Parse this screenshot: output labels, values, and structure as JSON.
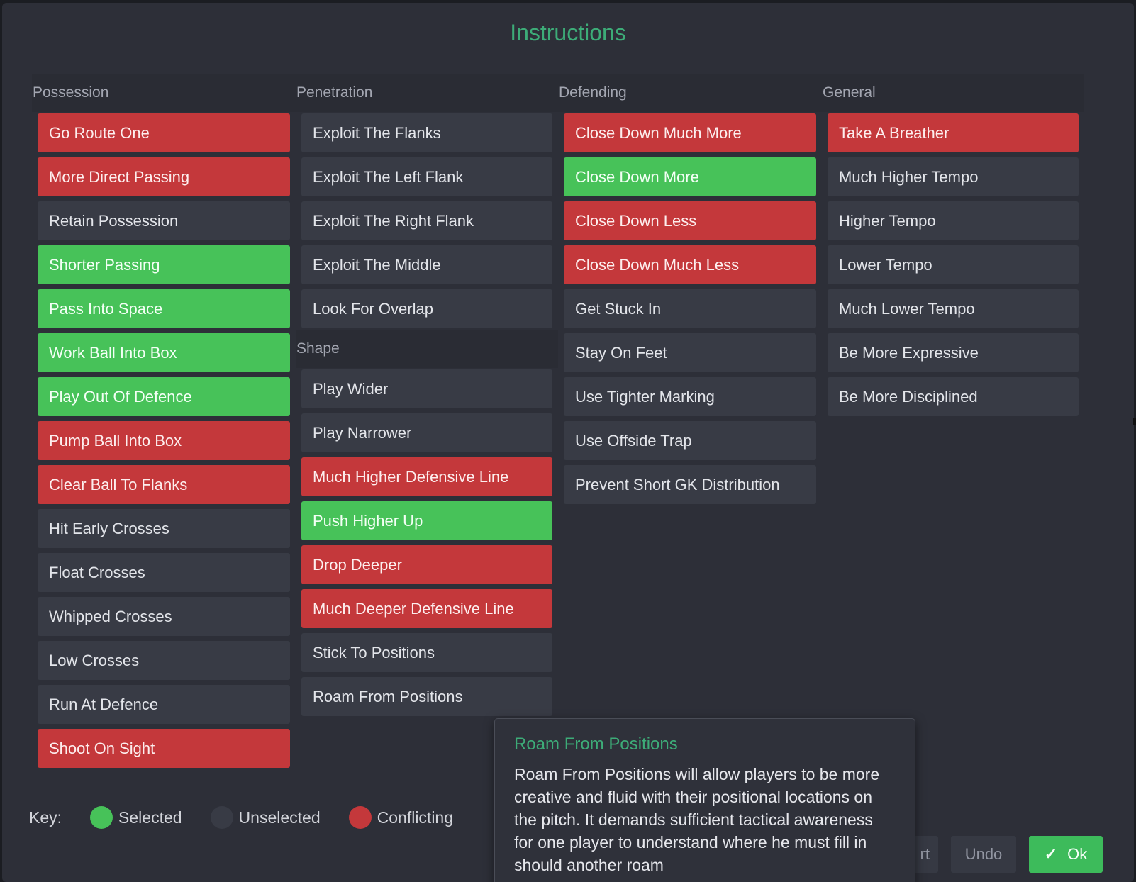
{
  "dialog": {
    "title": "Instructions"
  },
  "columns": {
    "possession": {
      "header": "Possession",
      "items": [
        {
          "label": "Go Route One",
          "state": "conflicting"
        },
        {
          "label": "More Direct Passing",
          "state": "conflicting"
        },
        {
          "label": "Retain Possession",
          "state": "unselected"
        },
        {
          "label": "Shorter Passing",
          "state": "selected"
        },
        {
          "label": "Pass Into Space",
          "state": "selected"
        },
        {
          "label": "Work Ball Into Box",
          "state": "selected"
        },
        {
          "label": "Play Out Of Defence",
          "state": "selected"
        },
        {
          "label": "Pump Ball Into Box",
          "state": "conflicting"
        },
        {
          "label": "Clear Ball To Flanks",
          "state": "conflicting"
        },
        {
          "label": "Hit Early Crosses",
          "state": "unselected"
        },
        {
          "label": "Float Crosses",
          "state": "unselected"
        },
        {
          "label": "Whipped Crosses",
          "state": "unselected"
        },
        {
          "label": "Low Crosses",
          "state": "unselected"
        },
        {
          "label": "Run At Defence",
          "state": "unselected"
        },
        {
          "label": "Shoot On Sight",
          "state": "conflicting"
        }
      ]
    },
    "penetration": {
      "header": "Penetration",
      "items": [
        {
          "label": "Exploit The Flanks",
          "state": "unselected"
        },
        {
          "label": "Exploit The Left Flank",
          "state": "unselected"
        },
        {
          "label": "Exploit The Right Flank",
          "state": "unselected"
        },
        {
          "label": "Exploit The Middle",
          "state": "unselected"
        },
        {
          "label": "Look For Overlap",
          "state": "unselected"
        }
      ]
    },
    "shape": {
      "header": "Shape",
      "items": [
        {
          "label": "Play Wider",
          "state": "unselected"
        },
        {
          "label": "Play Narrower",
          "state": "unselected"
        },
        {
          "label": "Much Higher Defensive Line",
          "state": "conflicting"
        },
        {
          "label": "Push Higher Up",
          "state": "selected"
        },
        {
          "label": "Drop Deeper",
          "state": "conflicting"
        },
        {
          "label": "Much Deeper Defensive Line",
          "state": "conflicting"
        },
        {
          "label": "Stick To Positions",
          "state": "unselected"
        },
        {
          "label": "Roam From Positions",
          "state": "unselected"
        }
      ]
    },
    "defending": {
      "header": "Defending",
      "items": [
        {
          "label": "Close Down Much More",
          "state": "conflicting"
        },
        {
          "label": "Close Down More",
          "state": "selected"
        },
        {
          "label": "Close Down Less",
          "state": "conflicting"
        },
        {
          "label": "Close Down Much Less",
          "state": "conflicting"
        },
        {
          "label": "Get Stuck In",
          "state": "unselected"
        },
        {
          "label": "Stay On Feet",
          "state": "unselected"
        },
        {
          "label": "Use Tighter Marking",
          "state": "unselected"
        },
        {
          "label": "Use Offside Trap",
          "state": "unselected"
        },
        {
          "label": "Prevent Short GK Distribution",
          "state": "unselected"
        }
      ]
    },
    "general": {
      "header": "General",
      "items": [
        {
          "label": "Take A Breather",
          "state": "conflicting"
        },
        {
          "label": "Much Higher Tempo",
          "state": "unselected"
        },
        {
          "label": "Higher Tempo",
          "state": "unselected"
        },
        {
          "label": "Lower Tempo",
          "state": "unselected"
        },
        {
          "label": "Much Lower Tempo",
          "state": "unselected"
        },
        {
          "label": "Be More Expressive",
          "state": "unselected"
        },
        {
          "label": "Be More Disciplined",
          "state": "unselected"
        }
      ]
    }
  },
  "key": {
    "label": "Key:",
    "items": [
      {
        "label": "Selected",
        "color": "#47c259"
      },
      {
        "label": "Unselected",
        "color": "#383b45"
      },
      {
        "label": "Conflicting",
        "color": "#c4383b"
      }
    ]
  },
  "footer": {
    "partial_label": "rt",
    "undo_label": "Undo",
    "ok_label": "Ok",
    "ok_icon": "check-icon"
  },
  "tooltip": {
    "title": "Roam From Positions",
    "body": "Roam From Positions will allow players to be more creative and fluid with their positional locations on the pitch. It demands sufficient tactical awareness for one player to understand where he must fill in should another roam"
  },
  "colors": {
    "selected": "#47c259",
    "conflicting": "#c4383b",
    "unselected": "#383b45",
    "accent": "#3dac78"
  }
}
